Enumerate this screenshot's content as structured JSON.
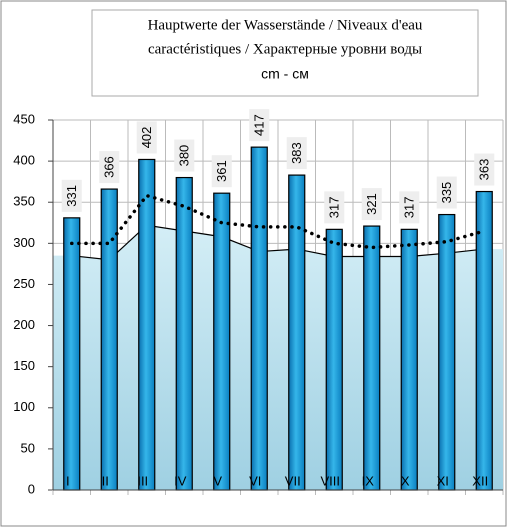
{
  "chart_data": {
    "type": "bar",
    "title": [
      "Hauptwerte der Wasserstände / Niveaux d'eau",
      "caractéristiques / Характерные уровни воды"
    ],
    "subtitle": "cm - см",
    "categories": [
      "I",
      "II",
      "III",
      "IV",
      "V",
      "VI",
      "VII",
      "VIII",
      "IX",
      "X",
      "XI",
      "XII"
    ],
    "series": [
      {
        "type": "bar",
        "color": "#1a9ad6",
        "values": [
          331,
          366,
          402,
          380,
          361,
          417,
          383,
          317,
          321,
          317,
          335,
          363
        ]
      },
      {
        "type": "area",
        "color": "#bfe3ef",
        "values": [
          285,
          280,
          322,
          315,
          308,
          290,
          293,
          284,
          284,
          284,
          288,
          293
        ]
      },
      {
        "type": "dotted-line",
        "color": "#000000",
        "values": [
          300,
          300,
          358,
          345,
          325,
          320,
          320,
          300,
          295,
          298,
          302,
          315
        ]
      }
    ],
    "ylim": [
      0,
      450
    ],
    "yticks": [
      0,
      50,
      100,
      150,
      200,
      250,
      300,
      350,
      400,
      450
    ],
    "grid": true
  }
}
